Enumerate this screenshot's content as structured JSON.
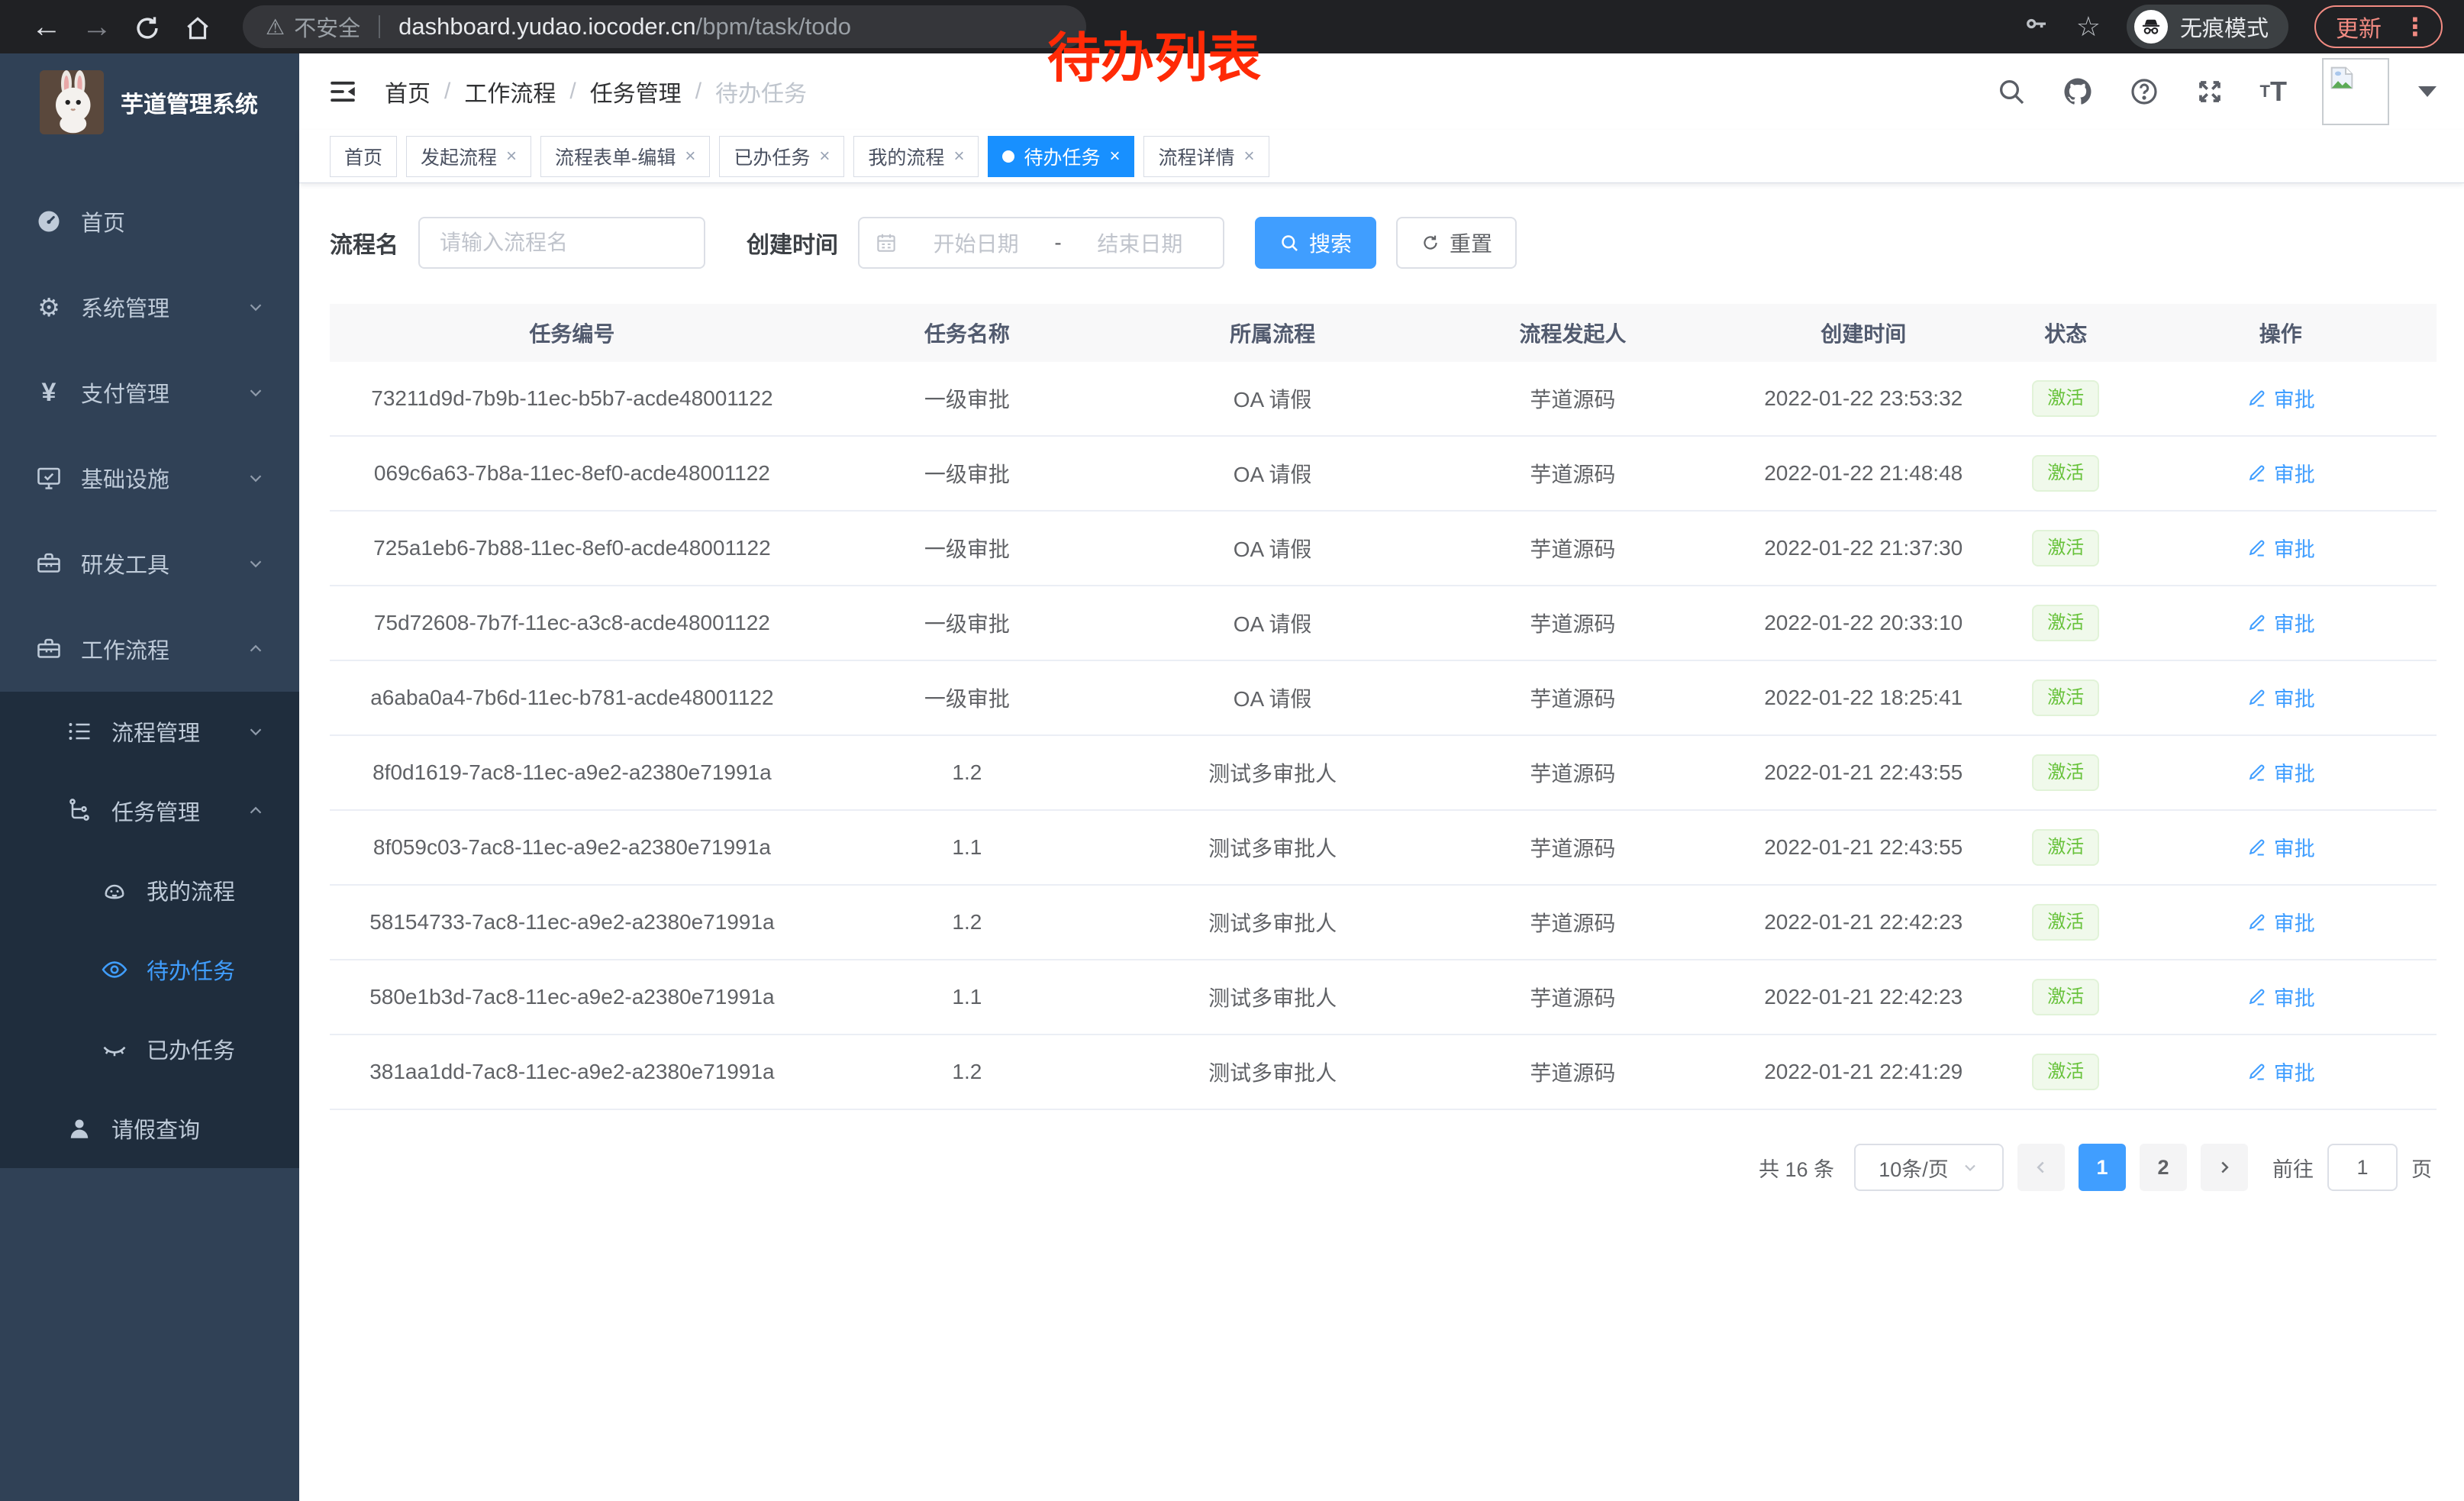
{
  "annotation": {
    "text": "待办列表",
    "color": "#ff2a06"
  },
  "browser": {
    "insecure_label": "不安全",
    "url_host": "dashboard.yudao.iocoder.cn",
    "url_path": "/bpm/task/todo",
    "incognito_label": "无痕模式",
    "update_label": "更新"
  },
  "sidebar": {
    "app_title": "芋道管理系统",
    "items": [
      {
        "label": "首页",
        "icon": "dashboard-icon",
        "level": 1,
        "chevron": null,
        "submenu": false,
        "active": false
      },
      {
        "label": "系统管理",
        "icon": "gear-icon",
        "level": 1,
        "chevron": "down",
        "submenu": false,
        "active": false
      },
      {
        "label": "支付管理",
        "icon": "yen-icon",
        "level": 1,
        "chevron": "down",
        "submenu": false,
        "active": false
      },
      {
        "label": "基础设施",
        "icon": "monitor-icon",
        "level": 1,
        "chevron": "down",
        "submenu": false,
        "active": false
      },
      {
        "label": "研发工具",
        "icon": "toolbox-icon",
        "level": 1,
        "chevron": "down",
        "submenu": false,
        "active": false
      },
      {
        "label": "工作流程",
        "icon": "toolbox-icon",
        "level": 1,
        "chevron": "up",
        "submenu": false,
        "active": false
      },
      {
        "label": "流程管理",
        "icon": "list-tree-icon",
        "level": 2,
        "chevron": "down",
        "submenu": true,
        "active": false
      },
      {
        "label": "任务管理",
        "icon": "org-tree-icon",
        "level": 2,
        "chevron": "up",
        "submenu": true,
        "active": false
      },
      {
        "label": "我的流程",
        "icon": "robot-icon",
        "level": 3,
        "chevron": null,
        "submenu": true,
        "active": false
      },
      {
        "label": "待办任务",
        "icon": "eye-icon",
        "level": 3,
        "chevron": null,
        "submenu": true,
        "active": true
      },
      {
        "label": "已办任务",
        "icon": "eye-closed-icon",
        "level": 3,
        "chevron": null,
        "submenu": true,
        "active": false
      },
      {
        "label": "请假查询",
        "icon": "user-icon",
        "level": 2,
        "chevron": null,
        "submenu": true,
        "active": false
      }
    ]
  },
  "header": {
    "breadcrumb": [
      "首页",
      "工作流程",
      "任务管理",
      "待办任务"
    ]
  },
  "tabs": [
    {
      "label": "首页",
      "closable": false,
      "active": false
    },
    {
      "label": "发起流程",
      "closable": true,
      "active": false
    },
    {
      "label": "流程表单-编辑",
      "closable": true,
      "active": false
    },
    {
      "label": "已办任务",
      "closable": true,
      "active": false
    },
    {
      "label": "我的流程",
      "closable": true,
      "active": false
    },
    {
      "label": "待办任务",
      "closable": true,
      "active": true
    },
    {
      "label": "流程详情",
      "closable": true,
      "active": false
    }
  ],
  "filters": {
    "name_label": "流程名",
    "name_placeholder": "请输入流程名",
    "time_label": "创建时间",
    "start_placeholder": "开始日期",
    "range_separator": "-",
    "end_placeholder": "结束日期",
    "search_label": "搜索",
    "reset_label": "重置"
  },
  "table": {
    "columns": [
      "任务编号",
      "任务名称",
      "所属流程",
      "流程发起人",
      "创建时间",
      "状态",
      "操作"
    ],
    "status_label": "激活",
    "action_label": "审批",
    "rows": [
      {
        "id": "73211d9d-7b9b-11ec-b5b7-acde48001122",
        "name": "一级审批",
        "process": "OA 请假",
        "starter": "芋道源码",
        "time": "2022-01-22 23:53:32"
      },
      {
        "id": "069c6a63-7b8a-11ec-8ef0-acde48001122",
        "name": "一级审批",
        "process": "OA 请假",
        "starter": "芋道源码",
        "time": "2022-01-22 21:48:48"
      },
      {
        "id": "725a1eb6-7b88-11ec-8ef0-acde48001122",
        "name": "一级审批",
        "process": "OA 请假",
        "starter": "芋道源码",
        "time": "2022-01-22 21:37:30"
      },
      {
        "id": "75d72608-7b7f-11ec-a3c8-acde48001122",
        "name": "一级审批",
        "process": "OA 请假",
        "starter": "芋道源码",
        "time": "2022-01-22 20:33:10"
      },
      {
        "id": "a6aba0a4-7b6d-11ec-b781-acde48001122",
        "name": "一级审批",
        "process": "OA 请假",
        "starter": "芋道源码",
        "time": "2022-01-22 18:25:41"
      },
      {
        "id": "8f0d1619-7ac8-11ec-a9e2-a2380e71991a",
        "name": "1.2",
        "process": "测试多审批人",
        "starter": "芋道源码",
        "time": "2022-01-21 22:43:55"
      },
      {
        "id": "8f059c03-7ac8-11ec-a9e2-a2380e71991a",
        "name": "1.1",
        "process": "测试多审批人",
        "starter": "芋道源码",
        "time": "2022-01-21 22:43:55"
      },
      {
        "id": "58154733-7ac8-11ec-a9e2-a2380e71991a",
        "name": "1.2",
        "process": "测试多审批人",
        "starter": "芋道源码",
        "time": "2022-01-21 22:42:23"
      },
      {
        "id": "580e1b3d-7ac8-11ec-a9e2-a2380e71991a",
        "name": "1.1",
        "process": "测试多审批人",
        "starter": "芋道源码",
        "time": "2022-01-21 22:42:23"
      },
      {
        "id": "381aa1dd-7ac8-11ec-a9e2-a2380e71991a",
        "name": "1.2",
        "process": "测试多审批人",
        "starter": "芋道源码",
        "time": "2022-01-21 22:41:29"
      }
    ]
  },
  "pagination": {
    "total_label": "共 16 条",
    "page_size": "10条/页",
    "pages": [
      "1",
      "2"
    ],
    "active_page": "1",
    "prev_icon": "chevron-left-icon",
    "next_icon": "chevron-right-icon",
    "goto_label": "前往",
    "goto_value": "1",
    "page_label": "页"
  },
  "colors": {
    "primary": "#409eff",
    "tab_active": "#1890ff",
    "success_text": "#67c23a",
    "success_bg": "#f0f9eb",
    "sidebar_bg": "#304156",
    "submenu_bg": "#1f2d3d",
    "annotation_red": "#ff2a06"
  }
}
